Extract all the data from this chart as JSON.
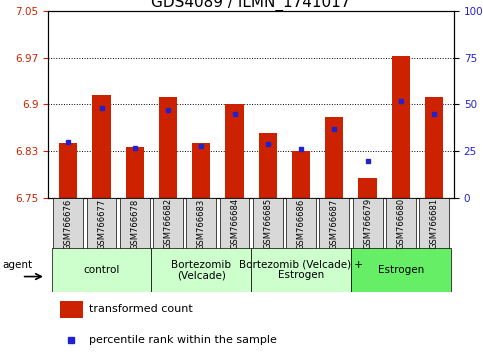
{
  "title": "GDS4089 / ILMN_1741017",
  "samples": [
    "GSM766676",
    "GSM766677",
    "GSM766678",
    "GSM766682",
    "GSM766683",
    "GSM766684",
    "GSM766685",
    "GSM766686",
    "GSM766687",
    "GSM766679",
    "GSM766680",
    "GSM766681"
  ],
  "red_values": [
    6.838,
    6.915,
    6.832,
    6.912,
    6.838,
    6.9,
    6.855,
    6.825,
    6.88,
    6.783,
    6.978,
    6.912
  ],
  "blue_percentile": [
    30,
    48,
    27,
    47,
    28,
    45,
    29,
    26,
    37,
    20,
    52,
    45
  ],
  "ylim_left": [
    6.75,
    7.05
  ],
  "ylim_right": [
    0,
    100
  ],
  "yticks_left": [
    6.75,
    6.825,
    6.9,
    6.975,
    7.05
  ],
  "yticks_right": [
    0,
    25,
    50,
    75,
    100
  ],
  "base": 6.75,
  "groups": [
    {
      "label": "control",
      "start": 0,
      "end": 3,
      "color": "#ccffcc"
    },
    {
      "label": "Bortezomib\n(Velcade)",
      "start": 3,
      "end": 6,
      "color": "#ccffcc"
    },
    {
      "label": "Bortezomib (Velcade) +\nEstrogen",
      "start": 6,
      "end": 9,
      "color": "#ccffcc"
    },
    {
      "label": "Estrogen",
      "start": 9,
      "end": 12,
      "color": "#66ee66"
    }
  ],
  "bar_color": "#cc2200",
  "blue_color": "#2222cc",
  "title_fontsize": 11,
  "tick_fontsize": 7.5,
  "sample_fontsize": 6,
  "group_label_fontsize": 7.5,
  "legend_fontsize": 8
}
